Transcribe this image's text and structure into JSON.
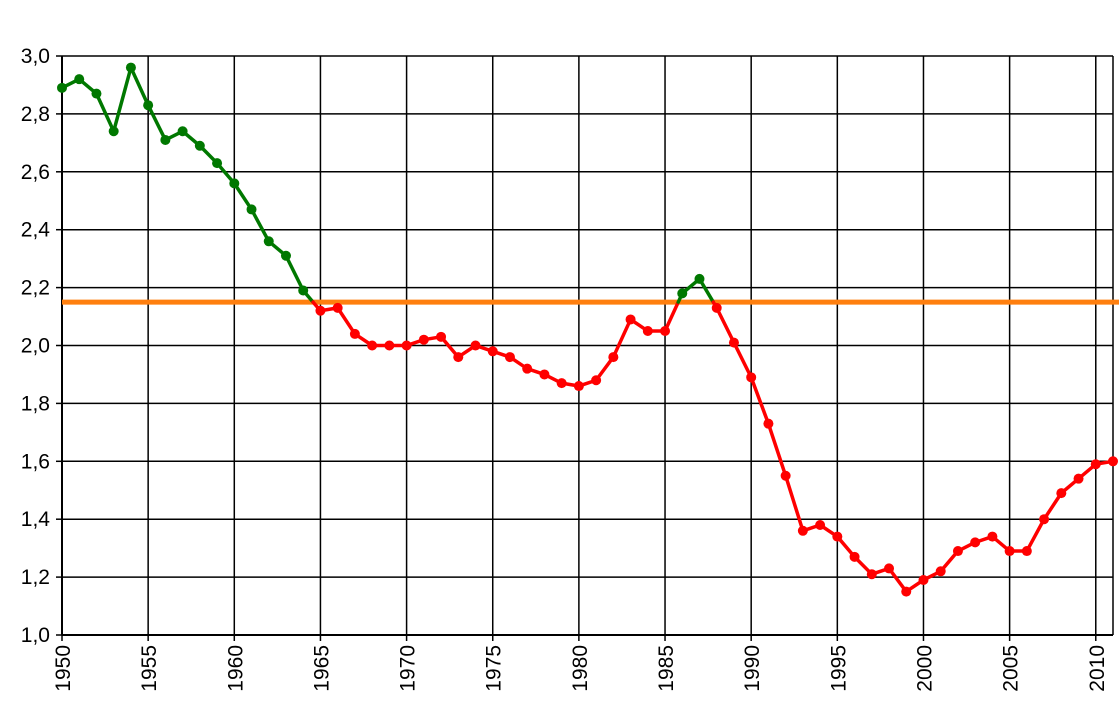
{
  "chart_data": {
    "type": "line",
    "xlim": [
      1950,
      2011
    ],
    "ylim": [
      1.0,
      3.0
    ],
    "grid": true,
    "x_ticks": [
      "1950",
      "1955",
      "1960",
      "1965",
      "1970",
      "1975",
      "1980",
      "1985",
      "1990",
      "1995",
      "2000",
      "2005",
      "2010"
    ],
    "y_ticks": [
      "1,0",
      "1,2",
      "1,4",
      "1,6",
      "1,8",
      "2,0",
      "2,2",
      "2,4",
      "2,6",
      "2,8",
      "3,0"
    ],
    "reference_line": {
      "value": 2.15,
      "color": "#ff7f0e"
    },
    "colors": {
      "above": "#007800",
      "below": "#ff0000"
    },
    "series": [
      {
        "x": [
          1950,
          1951,
          1952,
          1953,
          1954,
          1955,
          1956,
          1957,
          1958,
          1959,
          1960,
          1961,
          1962,
          1963,
          1964,
          1965,
          1966,
          1967,
          1968,
          1969,
          1970,
          1971,
          1972,
          1973,
          1974,
          1975,
          1976,
          1977,
          1978,
          1979,
          1980,
          1981,
          1982,
          1983,
          1984,
          1985,
          1986,
          1987,
          1988,
          1989,
          1990,
          1991,
          1992,
          1993,
          1994,
          1995,
          1996,
          1997,
          1998,
          1999,
          2000,
          2001,
          2002,
          2003,
          2004,
          2005,
          2006,
          2007,
          2008,
          2009,
          2010,
          2011
        ],
        "values": [
          2.89,
          2.92,
          2.87,
          2.74,
          2.96,
          2.83,
          2.71,
          2.74,
          2.69,
          2.63,
          2.56,
          2.47,
          2.36,
          2.31,
          2.19,
          2.12,
          2.13,
          2.04,
          2.0,
          2.0,
          2.0,
          2.02,
          2.03,
          1.96,
          2.0,
          1.98,
          1.96,
          1.92,
          1.9,
          1.87,
          1.86,
          1.88,
          1.96,
          2.09,
          2.05,
          2.05,
          2.18,
          2.23,
          2.13,
          2.01,
          1.89,
          1.73,
          1.55,
          1.36,
          1.38,
          1.34,
          1.27,
          1.21,
          1.23,
          1.15,
          1.19,
          1.22,
          1.29,
          1.32,
          1.34,
          1.29,
          1.29,
          1.4,
          1.49,
          1.54,
          1.59,
          1.6
        ]
      }
    ]
  }
}
